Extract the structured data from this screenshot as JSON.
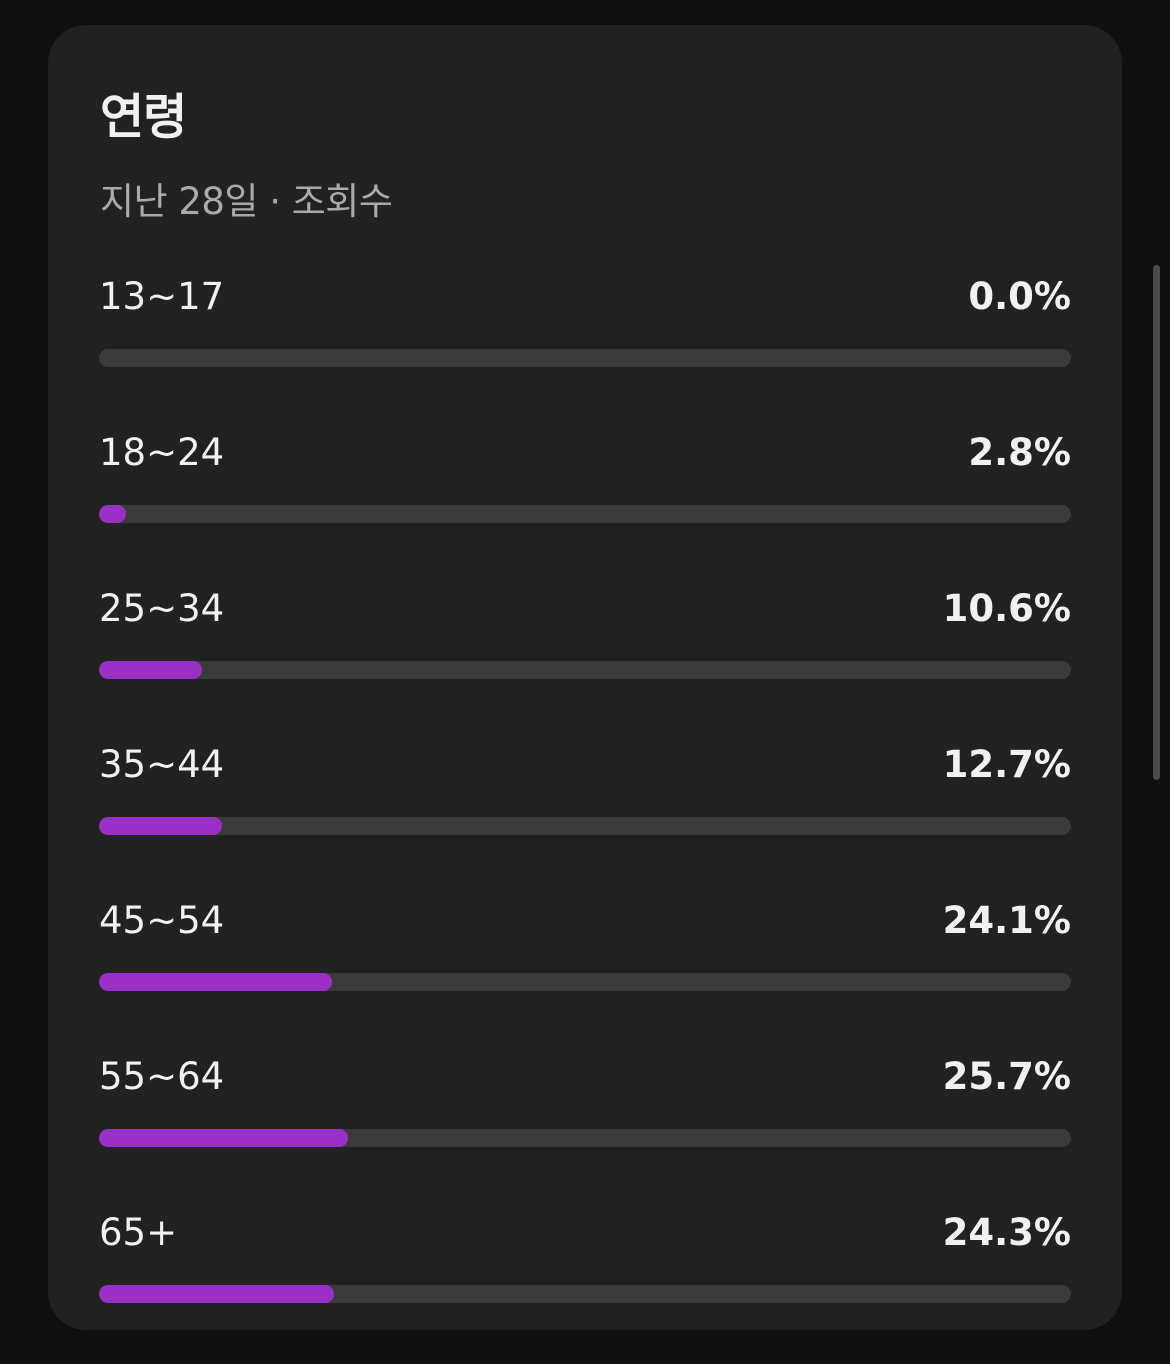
{
  "card": {
    "title": "연령",
    "subtitle": "지난 28일 · 조회수"
  },
  "colors": {
    "background": "#0f0f0f",
    "card": "#212121",
    "track": "#3a3a3a",
    "fill": "#9a2fc5",
    "text": "#f1f1f1",
    "subtext": "#aaaaaa"
  },
  "age_groups": [
    {
      "label": "13~17",
      "value": "0.0%",
      "percent": 0.0
    },
    {
      "label": "18~24",
      "value": "2.8%",
      "percent": 2.8
    },
    {
      "label": "25~34",
      "value": "10.6%",
      "percent": 10.6
    },
    {
      "label": "35~44",
      "value": "12.7%",
      "percent": 12.7
    },
    {
      "label": "45~54",
      "value": "24.1%",
      "percent": 24.1
    },
    {
      "label": "55~64",
      "value": "25.7%",
      "percent": 25.7
    },
    {
      "label": "65+",
      "value": "24.3%",
      "percent": 24.3
    }
  ]
}
